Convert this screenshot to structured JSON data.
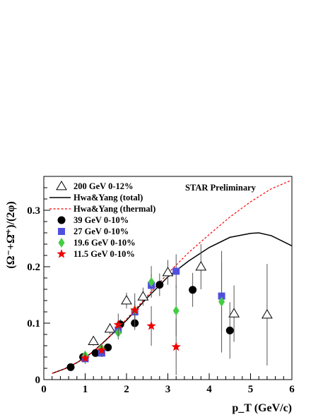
{
  "chart_data": {
    "type": "scatter",
    "annotation": "STAR Preliminary",
    "xlabel": "p_T (GeV/c)",
    "ylabel": "(Ω⁻+Ω̄⁺)/(2φ)",
    "xlim": [
      0,
      6
    ],
    "ylim": [
      0,
      0.36
    ],
    "xticks": [
      0,
      1,
      2,
      3,
      4,
      5,
      6
    ],
    "yticks": [
      0,
      0.1,
      0.2,
      0.3
    ],
    "xtick_labels": [
      "0",
      "1",
      "2",
      "3",
      "4",
      "5",
      "6"
    ],
    "ytick_labels": [
      "0",
      "0.1",
      "0.2",
      "0.3"
    ],
    "grid": false,
    "legend_position": "top-left",
    "series": [
      {
        "name": "200  GeV 0-12%",
        "marker": "open-triangle",
        "color": "#000000",
        "points": [
          {
            "x": 1.2,
            "y": 0.068,
            "err": 0.008
          },
          {
            "x": 1.6,
            "y": 0.09,
            "err": 0.01
          },
          {
            "x": 2.0,
            "y": 0.14,
            "err": 0.014
          },
          {
            "x": 2.4,
            "y": 0.147,
            "err": 0.016
          },
          {
            "x": 3.0,
            "y": 0.19,
            "err": 0.022
          },
          {
            "x": 3.8,
            "y": 0.2,
            "err": 0.04
          },
          {
            "x": 4.6,
            "y": 0.117,
            "err": 0.05
          },
          {
            "x": 5.4,
            "y": 0.115,
            "err": 0.09
          }
        ]
      },
      {
        "name": "Hwa&Yang (total)",
        "marker": "line",
        "color": "#000000",
        "points": [
          {
            "x": 0.2,
            "y": 0.011
          },
          {
            "x": 0.5,
            "y": 0.019
          },
          {
            "x": 0.8,
            "y": 0.03
          },
          {
            "x": 1.0,
            "y": 0.039
          },
          {
            "x": 1.2,
            "y": 0.05
          },
          {
            "x": 1.5,
            "y": 0.07
          },
          {
            "x": 2.0,
            "y": 0.105
          },
          {
            "x": 2.5,
            "y": 0.145
          },
          {
            "x": 3.0,
            "y": 0.182
          },
          {
            "x": 3.5,
            "y": 0.21
          },
          {
            "x": 4.0,
            "y": 0.234
          },
          {
            "x": 4.5,
            "y": 0.252
          },
          {
            "x": 5.0,
            "y": 0.259
          },
          {
            "x": 5.2,
            "y": 0.26
          },
          {
            "x": 5.5,
            "y": 0.255
          },
          {
            "x": 6.0,
            "y": 0.237
          }
        ]
      },
      {
        "name": "Hwa&Yang (thermal)",
        "marker": "dashed-line",
        "color": "#ff0000",
        "points": [
          {
            "x": 0.2,
            "y": 0.011
          },
          {
            "x": 0.5,
            "y": 0.019
          },
          {
            "x": 1.0,
            "y": 0.038
          },
          {
            "x": 1.5,
            "y": 0.069
          },
          {
            "x": 2.0,
            "y": 0.107
          },
          {
            "x": 2.5,
            "y": 0.148
          },
          {
            "x": 3.0,
            "y": 0.188
          },
          {
            "x": 3.5,
            "y": 0.225
          },
          {
            "x": 4.0,
            "y": 0.257
          },
          {
            "x": 4.5,
            "y": 0.288
          },
          {
            "x": 5.0,
            "y": 0.315
          },
          {
            "x": 5.5,
            "y": 0.338
          },
          {
            "x": 5.95,
            "y": 0.352
          }
        ]
      },
      {
        "name": "39    GeV 0-10%",
        "marker": "filled-circle",
        "color": "#000000",
        "points": [
          {
            "x": 0.65,
            "y": 0.022,
            "err": 0.003
          },
          {
            "x": 0.95,
            "y": 0.04,
            "err": 0.004
          },
          {
            "x": 1.25,
            "y": 0.047,
            "err": 0.005
          },
          {
            "x": 1.55,
            "y": 0.057,
            "err": 0.006
          },
          {
            "x": 1.85,
            "y": 0.098,
            "err": 0.009
          },
          {
            "x": 2.2,
            "y": 0.1,
            "err": 0.012
          },
          {
            "x": 2.8,
            "y": 0.168,
            "err": 0.02
          },
          {
            "x": 3.6,
            "y": 0.159,
            "err": 0.03
          },
          {
            "x": 4.5,
            "y": 0.087,
            "err": 0.05
          }
        ]
      },
      {
        "name": "27    GeV 0-10%",
        "marker": "filled-square",
        "color": "#5050e0",
        "points": [
          {
            "x": 1.0,
            "y": 0.037,
            "err": 0.005
          },
          {
            "x": 1.4,
            "y": 0.047,
            "err": 0.006
          },
          {
            "x": 1.8,
            "y": 0.088,
            "err": 0.01
          },
          {
            "x": 2.2,
            "y": 0.12,
            "err": 0.014
          },
          {
            "x": 2.6,
            "y": 0.167,
            "err": 0.02
          },
          {
            "x": 3.2,
            "y": 0.192,
            "err": 0.03
          },
          {
            "x": 4.3,
            "y": 0.148,
            "err": 0.06
          }
        ]
      },
      {
        "name": "19.6 GeV 0-10%",
        "marker": "filled-diamond",
        "color": "#44cc44",
        "points": [
          {
            "x": 1.0,
            "y": 0.043,
            "err": 0.006
          },
          {
            "x": 1.4,
            "y": 0.055,
            "err": 0.008
          },
          {
            "x": 1.8,
            "y": 0.083,
            "err": 0.012
          },
          {
            "x": 2.2,
            "y": 0.123,
            "err": 0.018
          },
          {
            "x": 2.6,
            "y": 0.173,
            "err": 0.028
          },
          {
            "x": 3.2,
            "y": 0.122,
            "err": 0.045
          },
          {
            "x": 4.3,
            "y": 0.138,
            "err": 0.09
          }
        ]
      },
      {
        "name": "11.5 GeV 0-10%",
        "marker": "filled-star",
        "color": "#ee0000",
        "points": [
          {
            "x": 1.0,
            "y": 0.038,
            "err": 0.01
          },
          {
            "x": 1.4,
            "y": 0.052,
            "err": 0.012
          },
          {
            "x": 1.8,
            "y": 0.097,
            "err": 0.02
          },
          {
            "x": 2.2,
            "y": 0.123,
            "err": 0.03
          },
          {
            "x": 2.6,
            "y": 0.095,
            "err": 0.035
          },
          {
            "x": 3.2,
            "y": 0.058,
            "err": 0.05
          }
        ]
      }
    ]
  }
}
